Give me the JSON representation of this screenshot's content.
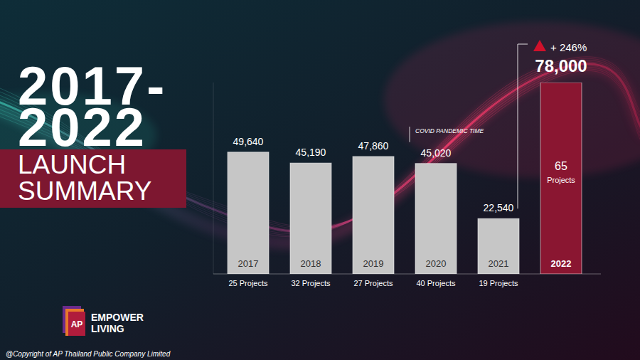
{
  "chart_data": {
    "type": "bar",
    "title": "2017-2022",
    "subtitle": "LAUNCH SUMMARY",
    "categories": [
      "2017",
      "2018",
      "2019",
      "2020",
      "2021",
      "2022"
    ],
    "values": [
      49640,
      45190,
      47860,
      45020,
      22540,
      78000
    ],
    "value_labels": [
      "49,640",
      "45,190",
      "47,860",
      "45,020",
      "22,540",
      "78,000"
    ],
    "project_labels": [
      "25 Projects",
      "32 Projects",
      "27 Projects",
      "40 Projects",
      "19 Projects",
      "65 Projects"
    ],
    "colors": [
      "#c6c6c6",
      "#c6c6c6",
      "#c6c6c6",
      "#c6c6c6",
      "#c6c6c6",
      "#8a1631"
    ],
    "ylim": [
      0,
      78000
    ],
    "data_labels": true,
    "tick_labels": "x",
    "grid": false,
    "annotations": [
      "COVID PANDEMIC TIME",
      "+ 246%"
    ],
    "logo": [
      "AP",
      "EMPOWER",
      "LIVING"
    ],
    "footer": "@Copyright of AP Thailand Public Company Limited"
  }
}
